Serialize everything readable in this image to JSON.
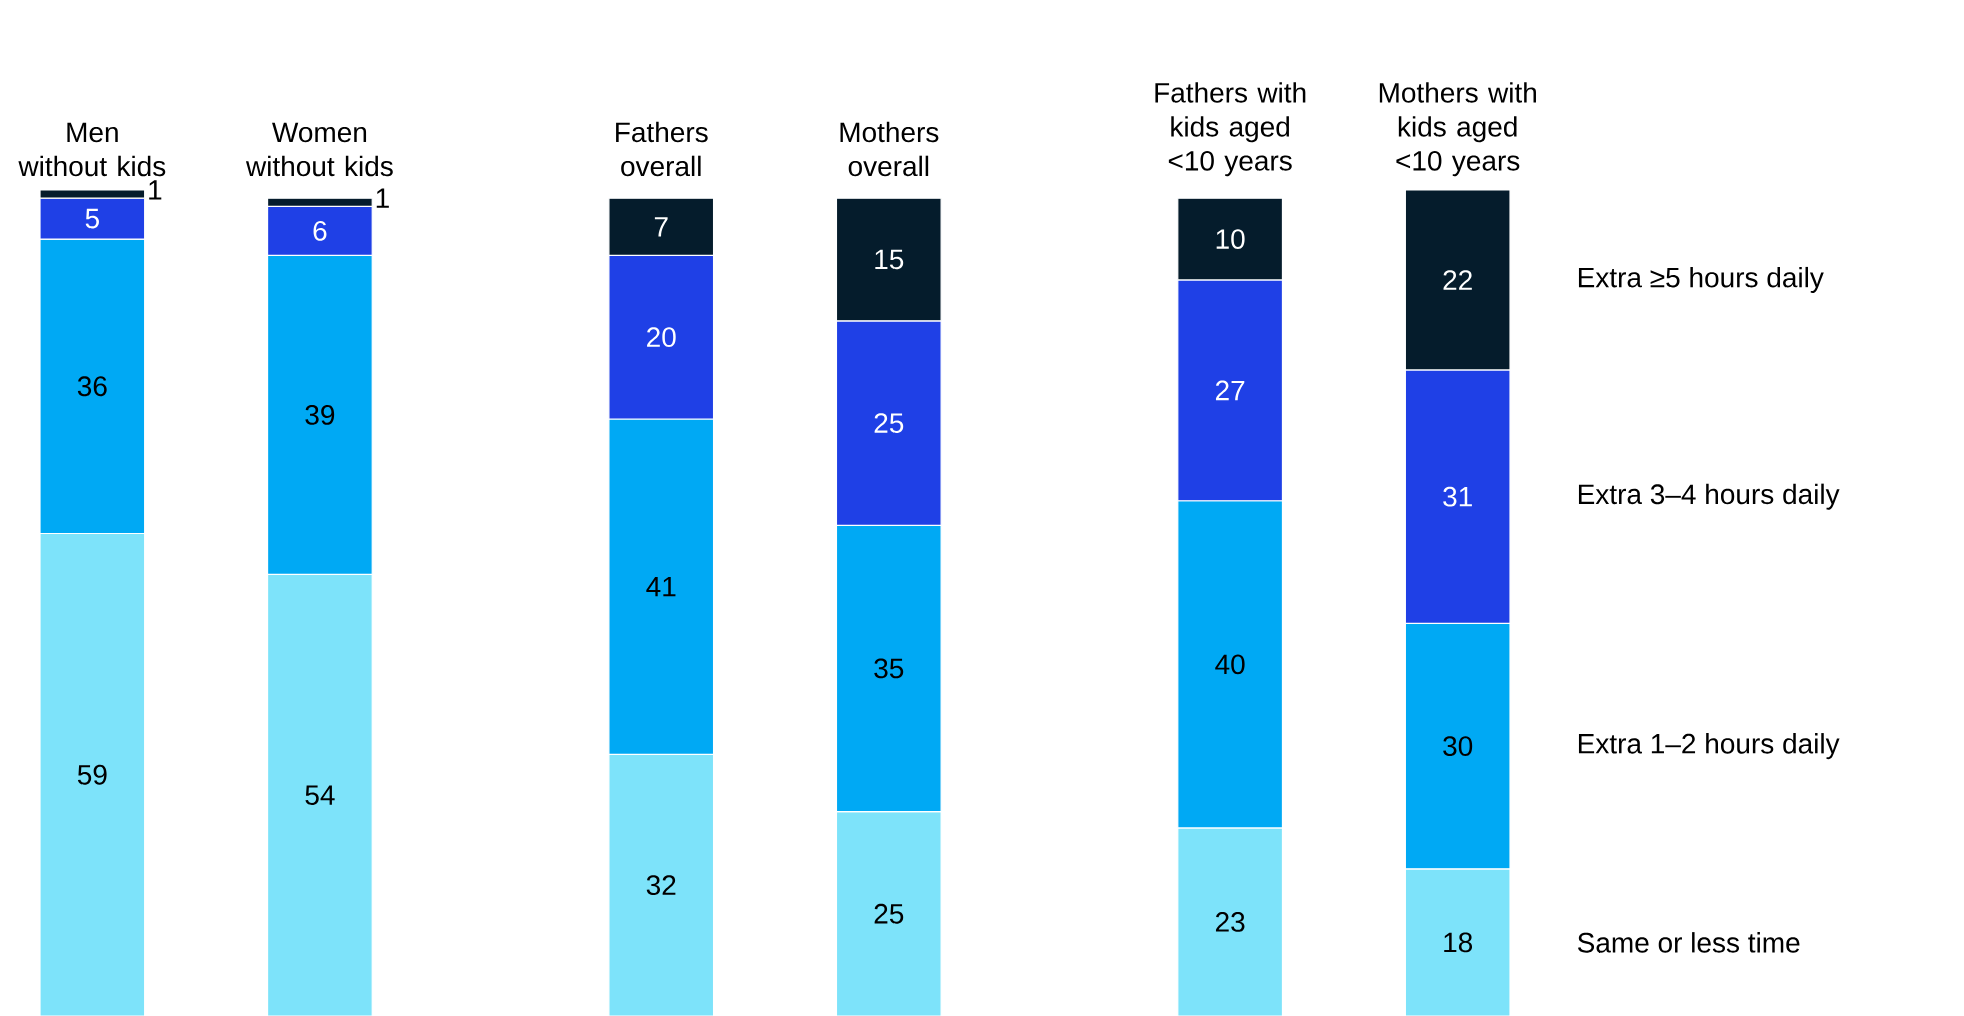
{
  "chart_data": {
    "type": "bar",
    "stacked": true,
    "data_labels": true,
    "legend": "right",
    "categories": [
      "Men without kids",
      "Women without kids",
      "Fathers overall",
      "Mothers overall",
      "Fathers with kids aged <10 years",
      "Mothers with kids aged <10 years"
    ],
    "series": [
      {
        "name": "Same or less time",
        "color": "#7de3fa",
        "values": [
          59,
          54,
          32,
          25,
          23,
          18
        ]
      },
      {
        "name": "Extra 1–2 hours daily",
        "color": "#00a9f4",
        "values": [
          36,
          39,
          41,
          35,
          40,
          30
        ]
      },
      {
        "name": "Extra 3–4 hours daily",
        "color": "#1f40e6",
        "values": [
          5,
          6,
          20,
          25,
          27,
          31
        ]
      },
      {
        "name": "Extra ≥5 hours daily",
        "color": "#051c2c",
        "values": [
          1,
          1,
          7,
          15,
          10,
          22
        ]
      }
    ]
  }
}
